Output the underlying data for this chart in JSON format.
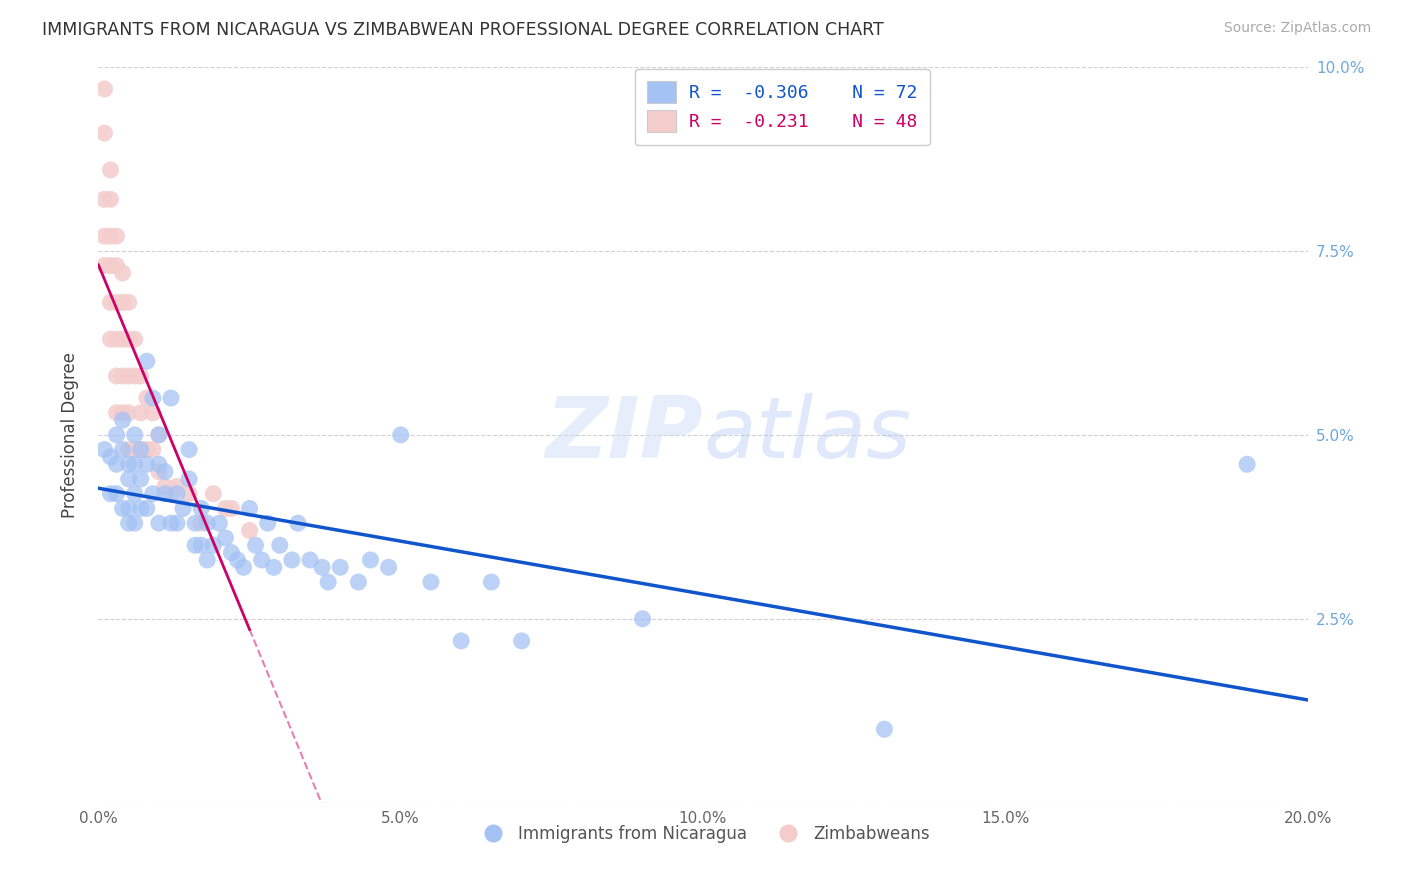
{
  "title": "IMMIGRANTS FROM NICARAGUA VS ZIMBABWEAN PROFESSIONAL DEGREE CORRELATION CHART",
  "source": "Source: ZipAtlas.com",
  "ylabel": "Professional Degree",
  "xlim": [
    0.0,
    0.2
  ],
  "ylim": [
    0.0,
    0.1
  ],
  "xticks": [
    0.0,
    0.05,
    0.1,
    0.15,
    0.2
  ],
  "xtick_labels": [
    "0.0%",
    "5.0%",
    "10.0%",
    "15.0%",
    "20.0%"
  ],
  "yticks": [
    0.0,
    0.025,
    0.05,
    0.075,
    0.1
  ],
  "ytick_labels_left": [
    "",
    "",
    "",
    "",
    ""
  ],
  "ytick_labels_right": [
    "",
    "2.5%",
    "5.0%",
    "7.5%",
    "10.0%"
  ],
  "legend_r1": "-0.306",
  "legend_n1": "72",
  "legend_r2": "-0.231",
  "legend_n2": "48",
  "blue_color": "#a4c2f4",
  "pink_color": "#f4cccc",
  "blue_line_color": "#1155cc",
  "pink_line_color": "#cc0066",
  "blue_scatter_x": [
    0.001,
    0.002,
    0.002,
    0.003,
    0.003,
    0.003,
    0.004,
    0.004,
    0.004,
    0.005,
    0.005,
    0.005,
    0.005,
    0.006,
    0.006,
    0.006,
    0.006,
    0.007,
    0.007,
    0.007,
    0.008,
    0.008,
    0.008,
    0.009,
    0.009,
    0.01,
    0.01,
    0.01,
    0.011,
    0.011,
    0.012,
    0.012,
    0.013,
    0.013,
    0.014,
    0.015,
    0.015,
    0.016,
    0.016,
    0.017,
    0.017,
    0.018,
    0.018,
    0.019,
    0.02,
    0.021,
    0.022,
    0.023,
    0.024,
    0.025,
    0.026,
    0.027,
    0.028,
    0.029,
    0.03,
    0.032,
    0.033,
    0.035,
    0.037,
    0.038,
    0.04,
    0.043,
    0.045,
    0.048,
    0.05,
    0.055,
    0.06,
    0.065,
    0.07,
    0.09,
    0.13,
    0.19
  ],
  "blue_scatter_y": [
    0.048,
    0.047,
    0.042,
    0.05,
    0.046,
    0.042,
    0.052,
    0.048,
    0.04,
    0.046,
    0.044,
    0.04,
    0.038,
    0.05,
    0.046,
    0.042,
    0.038,
    0.048,
    0.044,
    0.04,
    0.06,
    0.046,
    0.04,
    0.055,
    0.042,
    0.05,
    0.046,
    0.038,
    0.045,
    0.042,
    0.055,
    0.038,
    0.042,
    0.038,
    0.04,
    0.048,
    0.044,
    0.038,
    0.035,
    0.04,
    0.035,
    0.038,
    0.033,
    0.035,
    0.038,
    0.036,
    0.034,
    0.033,
    0.032,
    0.04,
    0.035,
    0.033,
    0.038,
    0.032,
    0.035,
    0.033,
    0.038,
    0.033,
    0.032,
    0.03,
    0.032,
    0.03,
    0.033,
    0.032,
    0.05,
    0.03,
    0.022,
    0.03,
    0.022,
    0.025,
    0.01,
    0.046
  ],
  "pink_scatter_x": [
    0.001,
    0.001,
    0.001,
    0.001,
    0.001,
    0.002,
    0.002,
    0.002,
    0.002,
    0.002,
    0.002,
    0.003,
    0.003,
    0.003,
    0.003,
    0.003,
    0.003,
    0.004,
    0.004,
    0.004,
    0.004,
    0.004,
    0.005,
    0.005,
    0.005,
    0.005,
    0.005,
    0.006,
    0.006,
    0.006,
    0.007,
    0.007,
    0.007,
    0.008,
    0.008,
    0.009,
    0.009,
    0.01,
    0.01,
    0.011,
    0.012,
    0.013,
    0.015,
    0.017,
    0.019,
    0.021,
    0.022,
    0.025
  ],
  "pink_scatter_y": [
    0.097,
    0.091,
    0.082,
    0.077,
    0.073,
    0.086,
    0.082,
    0.077,
    0.073,
    0.068,
    0.063,
    0.077,
    0.073,
    0.068,
    0.063,
    0.058,
    0.053,
    0.072,
    0.068,
    0.063,
    0.058,
    0.053,
    0.068,
    0.063,
    0.058,
    0.053,
    0.048,
    0.063,
    0.058,
    0.048,
    0.058,
    0.053,
    0.048,
    0.055,
    0.048,
    0.053,
    0.048,
    0.05,
    0.045,
    0.043,
    0.042,
    0.043,
    0.042,
    0.038,
    0.042,
    0.04,
    0.04,
    0.037
  ]
}
